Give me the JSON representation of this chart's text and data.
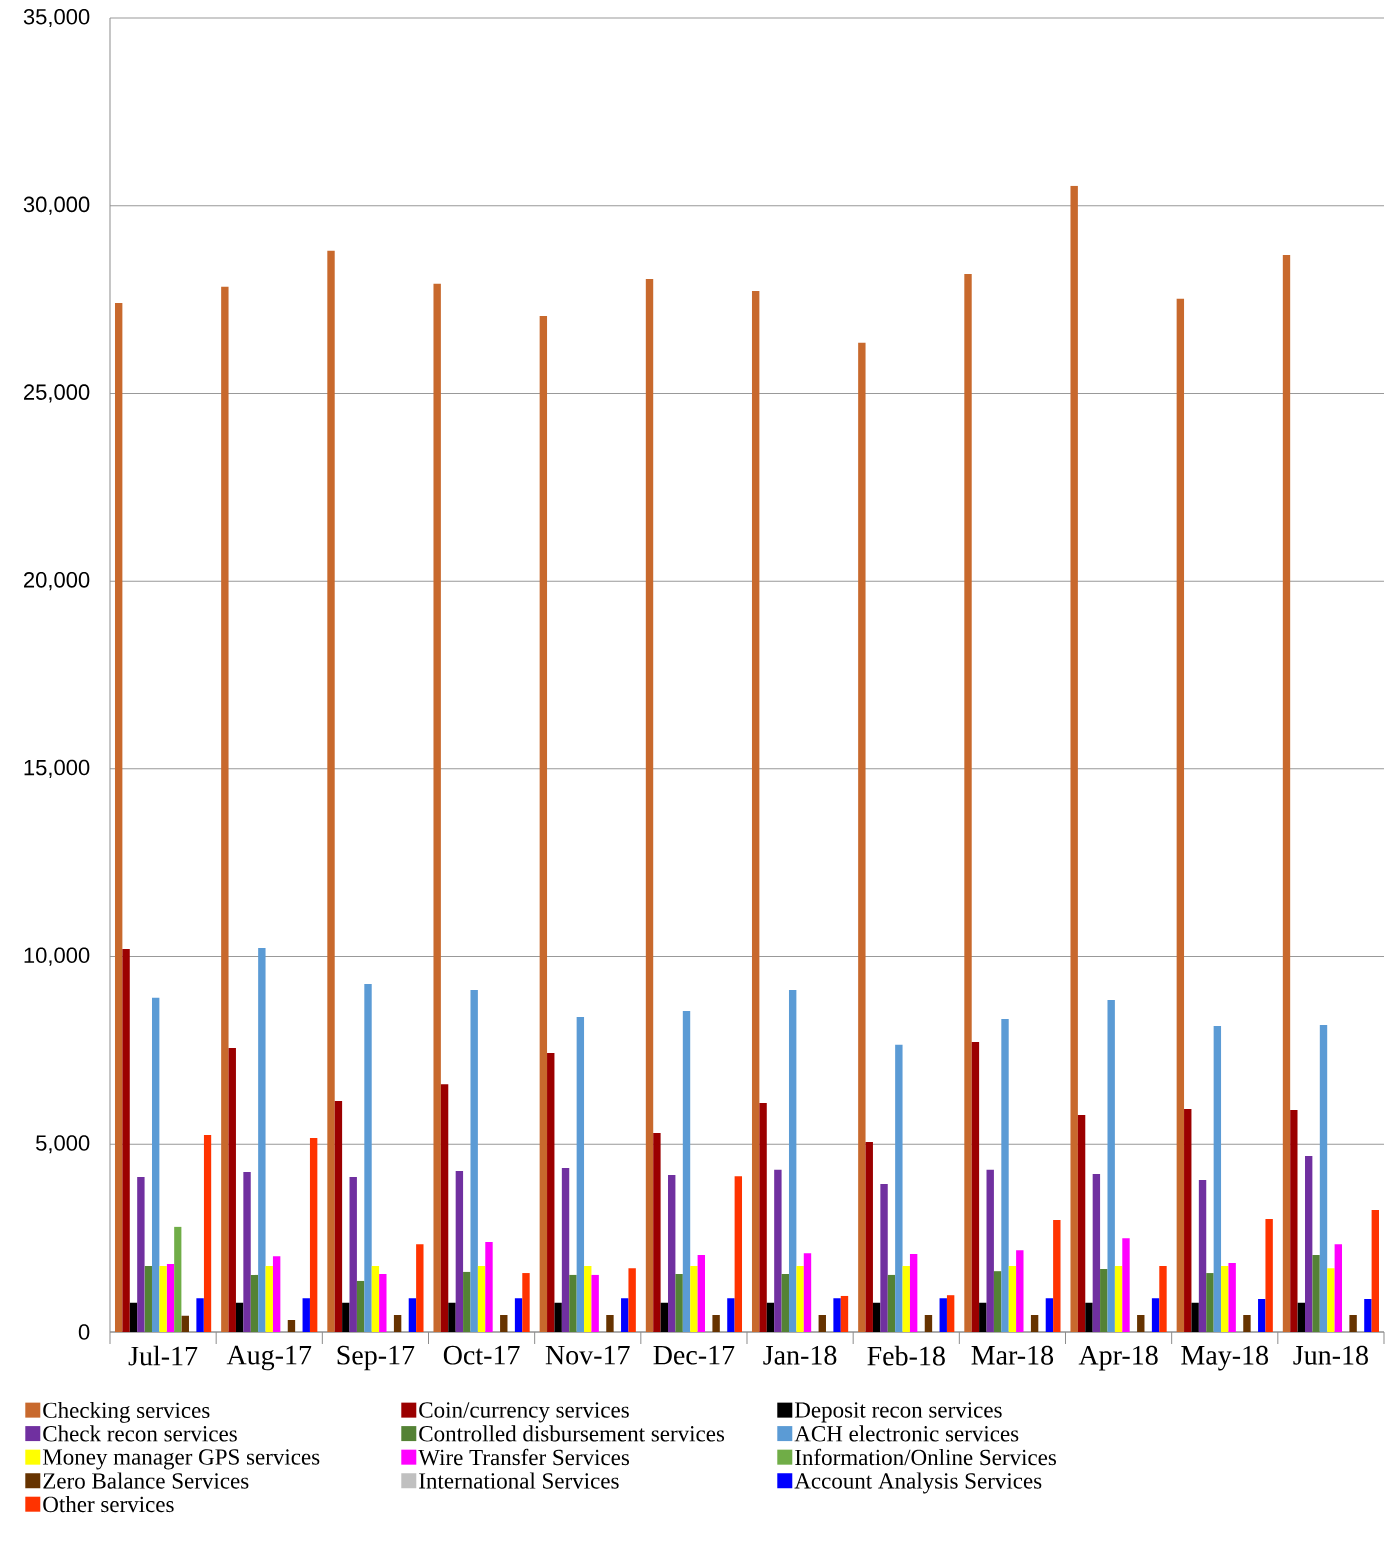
{
  "chart_data": {
    "type": "bar",
    "categories": [
      "Jul-17",
      "Aug-17",
      "Sep-17",
      "Oct-17",
      "Nov-17",
      "Dec-17",
      "Jan-18",
      "Feb-18",
      "Mar-18",
      "Apr-18",
      "May-18",
      "Jun-18"
    ],
    "ylim": [
      0,
      35000
    ],
    "yticks": [
      0,
      {
        "value": 5000,
        "label": "5,000"
      },
      {
        "value": 10000,
        "label": "10,000"
      },
      {
        "value": 15000,
        "label": "15,000"
      },
      {
        "value": 20000,
        "label": "20,000"
      },
      {
        "value": 25000,
        "label": "25,000"
      },
      {
        "value": 30000,
        "label": "30,000"
      },
      {
        "value": 35000,
        "label": "35,000"
      }
    ],
    "grid": "y",
    "legend": "bottom",
    "series": [
      {
        "name": "Checking services",
        "color": "#c8692d",
        "values": [
          27410,
          27840,
          28800,
          27920,
          27060,
          28050,
          27730,
          26350,
          28180,
          30530,
          27520,
          28690
        ]
      },
      {
        "name": "Coin/currency services",
        "color": "#9b0000",
        "values": [
          10200,
          7565,
          6150,
          6600,
          7430,
          5300,
          6100,
          5060,
          7725,
          5780,
          5940,
          5910
        ]
      },
      {
        "name": "Deposit recon services",
        "color": "#000000",
        "values": [
          780,
          780,
          780,
          780,
          780,
          780,
          780,
          780,
          780,
          780,
          780,
          780
        ]
      },
      {
        "name": "Check recon services",
        "color": "#7030a0",
        "values": [
          4130,
          4260,
          4130,
          4290,
          4370,
          4180,
          4320,
          3940,
          4320,
          4210,
          4050,
          4690
        ]
      },
      {
        "name": "Controlled disbursement services",
        "color": "#548235",
        "values": [
          1760,
          1520,
          1360,
          1600,
          1520,
          1545,
          1545,
          1520,
          1620,
          1680,
          1570,
          2050
        ]
      },
      {
        "name": "ACH electronic services",
        "color": "#5b9bd5",
        "values": [
          8900,
          10230,
          9270,
          9110,
          8390,
          8550,
          9110,
          7650,
          8340,
          8840,
          8150,
          8180
        ]
      },
      {
        "name": "Money manager GPS services",
        "color": "#ffff00",
        "values": [
          1760,
          1760,
          1760,
          1760,
          1760,
          1760,
          1760,
          1760,
          1760,
          1760,
          1760,
          1700
        ]
      },
      {
        "name": "Wire Transfer Services",
        "color": "#ff00ff",
        "values": [
          1810,
          2020,
          1545,
          2400,
          1520,
          2050,
          2100,
          2080,
          2180,
          2500,
          1840,
          2340
        ]
      },
      {
        "name": "Information/Online Services",
        "color": "#70ad47",
        "values": [
          2800,
          null,
          null,
          null,
          null,
          null,
          null,
          null,
          null,
          null,
          null,
          null
        ]
      },
      {
        "name": "Zero Balance Services",
        "color": "#663300",
        "values": [
          430,
          320,
          450,
          450,
          450,
          450,
          450,
          450,
          450,
          450,
          450,
          450
        ]
      },
      {
        "name": "International Services",
        "color": "#c0c0c0",
        "values": [
          null,
          null,
          null,
          null,
          null,
          null,
          null,
          null,
          null,
          null,
          null,
          null
        ]
      },
      {
        "name": "Account Analysis Services",
        "color": "#0000ff",
        "values": [
          900,
          900,
          900,
          900,
          900,
          900,
          900,
          900,
          900,
          900,
          880,
          880
        ]
      },
      {
        "name": "Other services",
        "color": "#ff3300",
        "values": [
          5250,
          5170,
          2340,
          1570,
          1700,
          4150,
          960,
          980,
          2980,
          1760,
          3010,
          3250
        ]
      }
    ]
  }
}
